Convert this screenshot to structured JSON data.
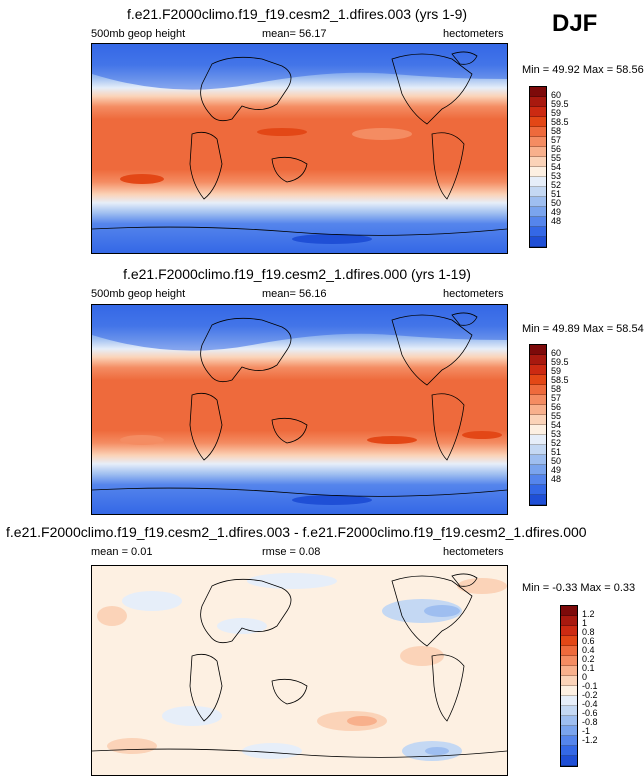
{
  "season": "DJF",
  "panels": [
    {
      "title": "f.e21.F2000climo.f19_f19.cesm2_1.dfires.003 (yrs 1-9)",
      "left_label": "500mb geop height",
      "center_label": "mean=  56.17",
      "right_label": "hectometers",
      "min_label": "Min =  49.92",
      "max_label": "Max =  58.56",
      "colorbar": {
        "colors": [
          "#7d0a0a",
          "#a8190f",
          "#cc2a12",
          "#e34716",
          "#ee6a3c",
          "#f48c62",
          "#f8b08c",
          "#fbd3b8",
          "#fdf0e2",
          "#e6eef9",
          "#c4d8f3",
          "#9ebef0",
          "#7aa4ee",
          "#5585ec",
          "#3468e6",
          "#1f4fd6",
          "#1536b0",
          "#0b1f80"
        ],
        "labels": [
          "60",
          "59.5",
          "59",
          "58.5",
          "58",
          "57",
          "56",
          "55",
          "54",
          "53",
          "52",
          "51",
          "50",
          "49",
          "48"
        ]
      }
    },
    {
      "title": "f.e21.F2000climo.f19_f19.cesm2_1.dfires.000 (yrs 1-19)",
      "left_label": "500mb geop height",
      "center_label": "mean=  56.16",
      "right_label": "hectometers",
      "min_label": "Min =  49.89",
      "max_label": "Max =  58.54",
      "colorbar": {
        "colors": [
          "#7d0a0a",
          "#a8190f",
          "#cc2a12",
          "#e34716",
          "#ee6a3c",
          "#f48c62",
          "#f8b08c",
          "#fbd3b8",
          "#fdf0e2",
          "#e6eef9",
          "#c4d8f3",
          "#9ebef0",
          "#7aa4ee",
          "#5585ec",
          "#3468e6",
          "#1f4fd6",
          "#1536b0",
          "#0b1f80"
        ],
        "labels": [
          "60",
          "59.5",
          "59",
          "58.5",
          "58",
          "57",
          "56",
          "55",
          "54",
          "53",
          "52",
          "51",
          "50",
          "49",
          "48"
        ]
      }
    },
    {
      "title": "f.e21.F2000climo.f19_f19.cesm2_1.dfires.003 - f.e21.F2000climo.f19_f19.cesm2_1.dfires.000",
      "left_label": "mean =  0.01",
      "center_label": "rmse =  0.08",
      "right_label": "hectometers",
      "min_label": "Min = -0.33",
      "max_label": "Max =  0.33",
      "colorbar": {
        "colors": [
          "#7d0a0a",
          "#a8190f",
          "#cc2a12",
          "#e34716",
          "#ee6a3c",
          "#f48c62",
          "#f8b08c",
          "#fbd3b8",
          "#fdf0e2",
          "#e6eef9",
          "#c4d8f3",
          "#9ebef0",
          "#7aa4ee",
          "#5585ec",
          "#3468e6",
          "#1f4fd6",
          "#1536b0",
          "#0b1f80"
        ],
        "labels": [
          "1.2",
          "1",
          "0.8",
          "0.6",
          "0.4",
          "0.2",
          "0.1",
          "0",
          "-0.1",
          "-0.2",
          "-0.4",
          "-0.6",
          "-0.8",
          "-1",
          "-1.2"
        ]
      }
    }
  ]
}
